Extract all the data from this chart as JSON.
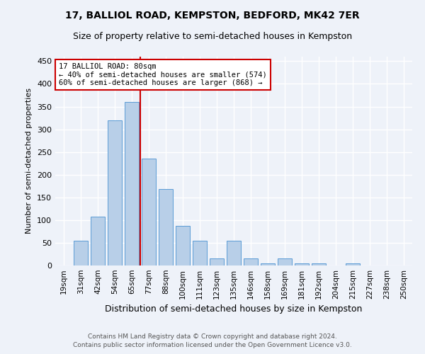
{
  "title": "17, BALLIOL ROAD, KEMPSTON, BEDFORD, MK42 7ER",
  "subtitle": "Size of property relative to semi-detached houses in Kempston",
  "xlabel": "Distribution of semi-detached houses by size in Kempston",
  "ylabel": "Number of semi-detached properties",
  "footnote1": "Contains HM Land Registry data © Crown copyright and database right 2024.",
  "footnote2": "Contains public sector information licensed under the Open Government Licence v3.0.",
  "categories": [
    "19sqm",
    "31sqm",
    "42sqm",
    "54sqm",
    "65sqm",
    "77sqm",
    "88sqm",
    "100sqm",
    "111sqm",
    "123sqm",
    "135sqm",
    "146sqm",
    "158sqm",
    "169sqm",
    "181sqm",
    "192sqm",
    "204sqm",
    "215sqm",
    "227sqm",
    "238sqm",
    "250sqm"
  ],
  "values": [
    0,
    55,
    107,
    320,
    360,
    235,
    168,
    88,
    55,
    15,
    55,
    15,
    5,
    15,
    5,
    5,
    0,
    5,
    0,
    0,
    0
  ],
  "bar_color": "#b8cfe8",
  "bar_edge_color": "#5b9bd5",
  "property_line_index": 5,
  "property_size": "80sqm",
  "pct_smaller": 40,
  "count_smaller": 574,
  "pct_larger": 60,
  "count_larger": 868,
  "annotation_box_color": "#cc0000",
  "ylim": [
    0,
    460
  ],
  "yticks": [
    0,
    50,
    100,
    150,
    200,
    250,
    300,
    350,
    400,
    450
  ],
  "background_color": "#eef2f9",
  "grid_color": "#ffffff",
  "title_fontsize": 10,
  "subtitle_fontsize": 9,
  "footnote_fontsize": 6.5
}
